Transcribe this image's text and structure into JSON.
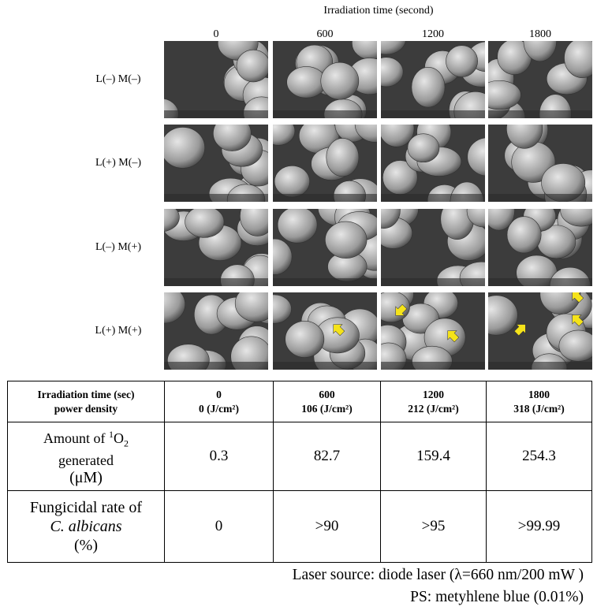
{
  "header": {
    "title": "Irradiation time (second)",
    "columns": [
      "0",
      "600",
      "1200",
      "1800"
    ]
  },
  "rows": [
    "L(–) M(–)",
    "L(+) M(–)",
    "L(–) M(+)",
    "L(+) M(+)"
  ],
  "table": {
    "header": [
      [
        "Irradiation time (sec)",
        "power density"
      ],
      [
        "0",
        "0 (J/cm²)"
      ],
      [
        "600",
        "106 (J/cm²)"
      ],
      [
        "1200",
        "212 (J/cm²)"
      ],
      [
        "1800",
        "318 (J/cm²)"
      ]
    ],
    "singlet_label": {
      "prefix": "Amount of ",
      "superscript": "1",
      "molecule": "O",
      "subscript": "2",
      "line2": "generated",
      "line3": "(μM)"
    },
    "singlet_values": [
      "0.3",
      "82.7",
      "159.4",
      "254.3"
    ],
    "fungicidal_label": {
      "line1": "Fungicidal rate of",
      "species": "C. albicans",
      "line3": "(%)"
    },
    "fungicidal_values": [
      "0",
      ">90",
      ">95",
      ">99.99"
    ]
  },
  "footer": [
    "Laser source: diode laser (λ=660 nm/200 mW )",
    "PS: metyhlene blue (0.01%)"
  ]
}
